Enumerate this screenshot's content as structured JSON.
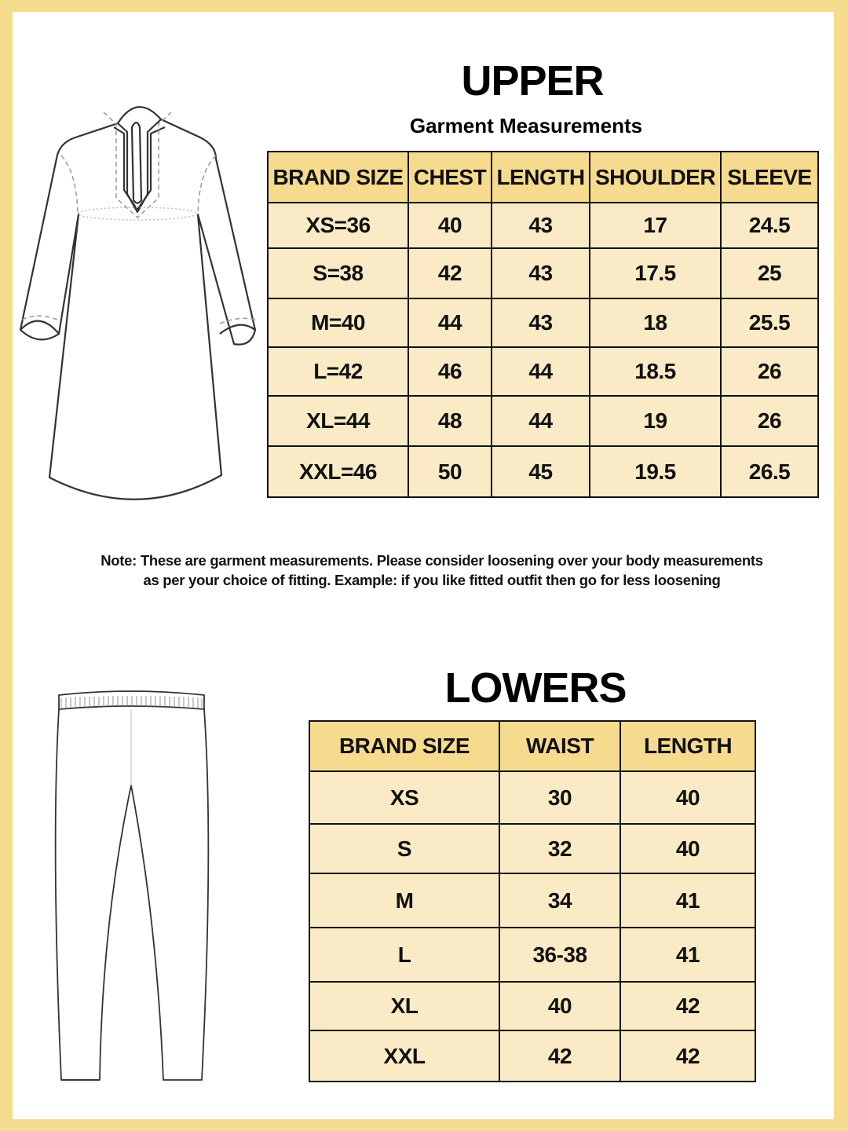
{
  "upper": {
    "title": "UPPER",
    "subtitle": "Garment Measurements",
    "headers": [
      "BRAND SIZE",
      "CHEST",
      "LENGTH",
      "SHOULDER",
      "SLEEVE"
    ],
    "rows": [
      [
        "XS=36",
        "40",
        "43",
        "17",
        "24.5"
      ],
      [
        "S=38",
        "42",
        "43",
        "17.5",
        "25"
      ],
      [
        "M=40",
        "44",
        "43",
        "18",
        "25.5"
      ],
      [
        "L=42",
        "46",
        "44",
        "18.5",
        "26"
      ],
      [
        "XL=44",
        "48",
        "44",
        "19",
        "26"
      ],
      [
        "XXL=46",
        "50",
        "45",
        "19.5",
        "26.5"
      ]
    ]
  },
  "note": {
    "line1": "Note: These are garment measurements. Please consider loosening over your body measurements",
    "line2": "as per your choice of fitting. Example: if you like fitted outfit then go for less loosening"
  },
  "lowers": {
    "title": "LOWERS",
    "headers": [
      "BRAND SIZE",
      "WAIST",
      "LENGTH"
    ],
    "rows": [
      [
        "XS",
        "30",
        "40"
      ],
      [
        "S",
        "32",
        "40"
      ],
      [
        "M",
        "34",
        "41"
      ],
      [
        "L",
        "36-38",
        "41"
      ],
      [
        "XL",
        "40",
        "42"
      ],
      [
        "XXL",
        "42",
        "42"
      ]
    ]
  },
  "colors": {
    "border": "#F5DC8E",
    "header": "#F6DB8F",
    "cell": "#FAEBC6"
  },
  "icons": [
    "kurta-illustration",
    "pants-illustration"
  ]
}
